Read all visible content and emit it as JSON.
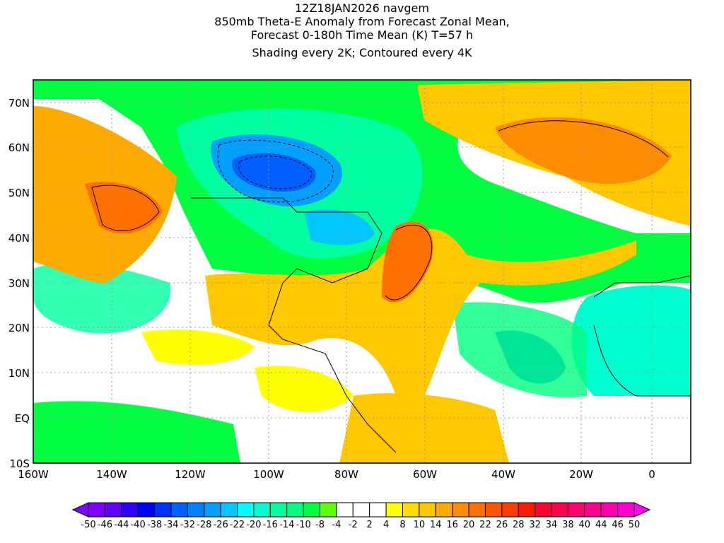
{
  "title": {
    "lines": [
      "12Z18JAN2026 navgem",
      "850mb Theta-E Anomaly from Forecast Zonal Mean,",
      "Forecast 0-180h Time Mean (K) T=57 h",
      "Shading every 2K; Contoured every 4K"
    ]
  },
  "axes": {
    "lat_labels": [
      "70N",
      "60N",
      "50N",
      "40N",
      "30N",
      "20N",
      "10N",
      "EQ",
      "10S"
    ],
    "lon_labels": [
      "160W",
      "140W",
      "120W",
      "100W",
      "80W",
      "60W",
      "40W",
      "20W",
      "0"
    ]
  },
  "colorbar": {
    "labels": [
      "-50",
      "-46",
      "-44",
      "-40",
      "-38",
      "-34",
      "-32",
      "-28",
      "-26",
      "-22",
      "-20",
      "-16",
      "-14",
      "-10",
      "-8",
      "-4",
      "-2",
      "2",
      "4",
      "8",
      "10",
      "14",
      "16",
      "20",
      "22",
      "26",
      "28",
      "32",
      "34",
      "38",
      "40",
      "44",
      "46",
      "50"
    ],
    "colors": [
      "#8000ff",
      "#6000ff",
      "#3000ff",
      "#0000ff",
      "#0030ff",
      "#0060ff",
      "#0080ff",
      "#00a0ff",
      "#00c8ff",
      "#00ffff",
      "#00ffd0",
      "#00ffa0",
      "#00ff80",
      "#00ff40",
      "#60ff00",
      "#ffffff",
      "#ffffff",
      "#ffffff",
      "#ffff00",
      "#ffdd00",
      "#ffc800",
      "#ffaa00",
      "#ff8c00",
      "#ff7000",
      "#ff5500",
      "#ff3c00",
      "#ff1a00",
      "#ff0030",
      "#ff0050",
      "#ff0070",
      "#ff0090",
      "#ff00b0",
      "#ff00d0"
    ],
    "low_arrow_color": "#8000ff",
    "high_arrow_color": "#ff00ff"
  }
}
